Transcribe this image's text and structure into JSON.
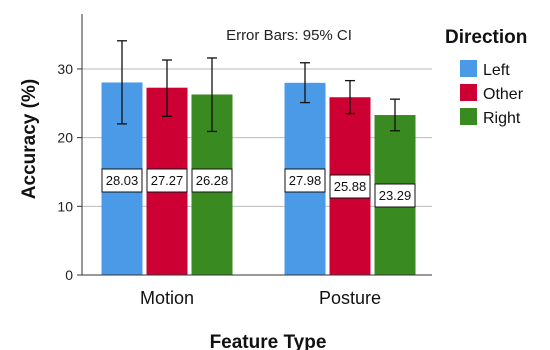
{
  "chart_data": {
    "type": "bar",
    "annotation": "Error Bars: 95% CI",
    "xlabel": "Feature Type",
    "ylabel": "Accuracy (%)",
    "ylim": [
      0,
      38
    ],
    "yticks": [
      0,
      10,
      20,
      30
    ],
    "grid": true,
    "legend_position": "right",
    "legend_title": "Direction",
    "categories": [
      "Motion",
      "Posture"
    ],
    "series": [
      {
        "name": "Left",
        "color": "#4a9ae8",
        "values": [
          28.03,
          27.98
        ],
        "labels": [
          "28.03",
          "27.98"
        ],
        "ci_low": [
          22.0,
          25.1
        ],
        "ci_high": [
          34.1,
          30.9
        ]
      },
      {
        "name": "Other",
        "color": "#cc0033",
        "values": [
          27.27,
          25.88
        ],
        "labels": [
          "27.27",
          "25.88"
        ],
        "ci_low": [
          23.1,
          23.5
        ],
        "ci_high": [
          31.3,
          28.3
        ]
      },
      {
        "name": "Right",
        "color": "#3a8a22",
        "values": [
          26.28,
          23.29
        ],
        "labels": [
          "26.28",
          "23.29"
        ],
        "ci_low": [
          20.9,
          21.0
        ],
        "ci_high": [
          31.6,
          25.6
        ]
      }
    ]
  }
}
